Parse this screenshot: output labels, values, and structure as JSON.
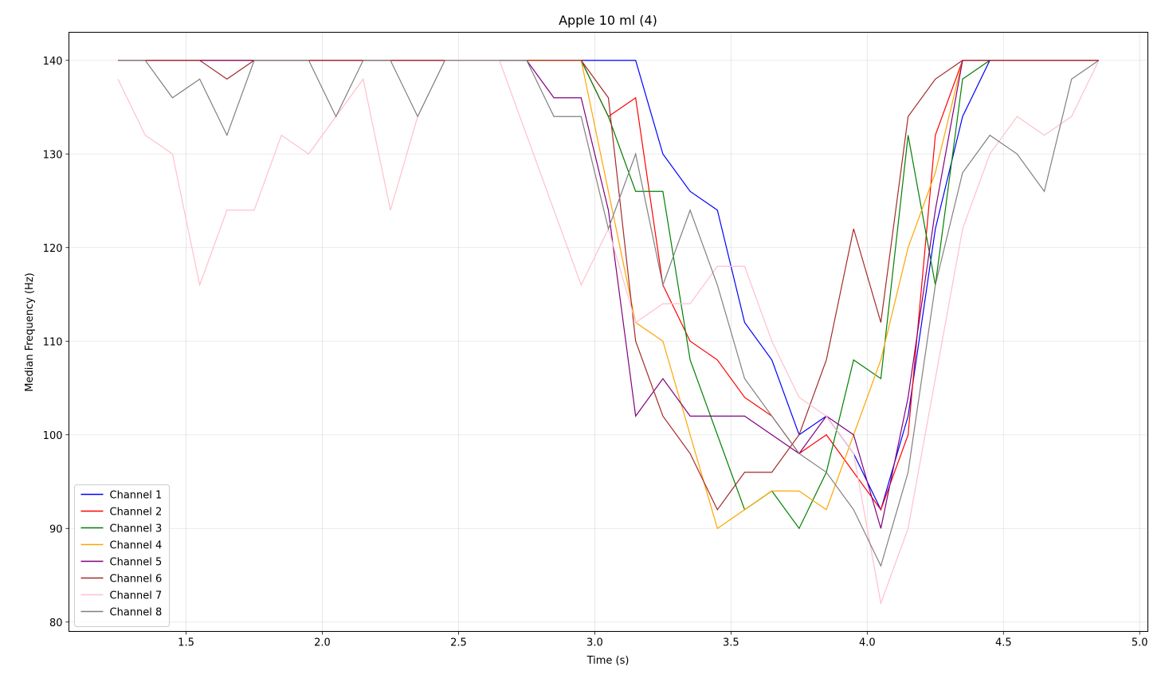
{
  "chart_data": {
    "type": "line",
    "title": "Apple 10 ml (4)",
    "xlabel": "Time (s)",
    "ylabel": "Median Frequency (Hz)",
    "xlim": [
      1.07,
      5.03
    ],
    "ylim": [
      79,
      143
    ],
    "xticks": [
      1.5,
      2.0,
      2.5,
      3.0,
      3.5,
      4.0,
      4.5,
      5.0
    ],
    "xtick_labels": [
      "1.5",
      "2.0",
      "2.5",
      "3.0",
      "3.5",
      "4.0",
      "4.5",
      "5.0"
    ],
    "yticks": [
      80,
      90,
      100,
      110,
      120,
      130,
      140
    ],
    "ytick_labels": [
      "80",
      "90",
      "100",
      "110",
      "120",
      "130",
      "140"
    ],
    "grid": true,
    "legend_position": "lower-left",
    "x": [
      1.25,
      1.35,
      1.45,
      1.55,
      1.65,
      1.75,
      1.85,
      1.95,
      2.05,
      2.15,
      2.25,
      2.35,
      2.45,
      2.55,
      2.65,
      2.75,
      2.85,
      2.95,
      3.05,
      3.15,
      3.25,
      3.35,
      3.45,
      3.55,
      3.65,
      3.75,
      3.85,
      3.95,
      4.05,
      4.15,
      4.25,
      4.35,
      4.45,
      4.55,
      4.65,
      4.75,
      4.85
    ],
    "series": [
      {
        "name": "Channel 1",
        "color": "#0000ff",
        "values": [
          140,
          140,
          140,
          140,
          140,
          140,
          140,
          140,
          140,
          140,
          140,
          140,
          140,
          140,
          140,
          140,
          140,
          140,
          140,
          140,
          130,
          126,
          124,
          112,
          108,
          100,
          102,
          98,
          92,
          102,
          122,
          134,
          140,
          140,
          140,
          140,
          140
        ]
      },
      {
        "name": "Channel 2",
        "color": "#ff0000",
        "values": [
          140,
          140,
          140,
          140,
          140,
          140,
          140,
          140,
          140,
          140,
          140,
          140,
          140,
          140,
          140,
          140,
          140,
          140,
          134,
          136,
          116,
          110,
          108,
          104,
          102,
          98,
          100,
          96,
          92,
          100,
          132,
          140,
          140,
          140,
          140,
          140,
          140
        ]
      },
      {
        "name": "Channel 3",
        "color": "#008000",
        "values": [
          140,
          140,
          140,
          140,
          140,
          140,
          140,
          140,
          140,
          140,
          140,
          140,
          140,
          140,
          140,
          140,
          140,
          140,
          134,
          126,
          126,
          108,
          100,
          92,
          94,
          90,
          96,
          108,
          106,
          132,
          116,
          138,
          140,
          140,
          140,
          140,
          140
        ]
      },
      {
        "name": "Channel 4",
        "color": "#ffa500",
        "values": [
          140,
          140,
          140,
          140,
          140,
          140,
          140,
          140,
          140,
          140,
          140,
          140,
          140,
          140,
          140,
          140,
          140,
          140,
          126,
          112,
          110,
          100,
          90,
          92,
          94,
          94,
          92,
          100,
          108,
          120,
          128,
          140,
          140,
          140,
          140,
          140,
          140
        ]
      },
      {
        "name": "Channel 5",
        "color": "#800080",
        "values": [
          140,
          140,
          140,
          140,
          140,
          140,
          140,
          140,
          140,
          140,
          140,
          140,
          140,
          140,
          140,
          140,
          136,
          136,
          124,
          102,
          106,
          102,
          102,
          102,
          100,
          98,
          102,
          100,
          90,
          104,
          124,
          140,
          140,
          140,
          140,
          140,
          140
        ]
      },
      {
        "name": "Channel 6",
        "color": "#a52a2a",
        "values": [
          140,
          140,
          140,
          140,
          138,
          140,
          140,
          140,
          140,
          140,
          140,
          140,
          140,
          140,
          140,
          140,
          140,
          140,
          136,
          110,
          102,
          98,
          92,
          96,
          96,
          100,
          108,
          122,
          112,
          134,
          138,
          140,
          140,
          140,
          140,
          140,
          140
        ]
      },
      {
        "name": "Channel 7",
        "color": "#ffc0cb",
        "values": [
          138,
          132,
          130,
          116,
          124,
          124,
          132,
          130,
          134,
          138,
          124,
          134,
          140,
          140,
          140,
          132,
          124,
          116,
          122,
          112,
          114,
          114,
          118,
          118,
          110,
          104,
          102,
          98,
          82,
          90,
          106,
          122,
          130,
          134,
          132,
          134,
          140
        ]
      },
      {
        "name": "Channel 8",
        "color": "#808080",
        "values": [
          140,
          140,
          136,
          138,
          132,
          140,
          140,
          140,
          134,
          140,
          140,
          134,
          140,
          140,
          140,
          140,
          134,
          134,
          122,
          130,
          116,
          124,
          116,
          106,
          102,
          98,
          96,
          92,
          86,
          96,
          116,
          128,
          132,
          130,
          126,
          138,
          140
        ]
      }
    ]
  }
}
